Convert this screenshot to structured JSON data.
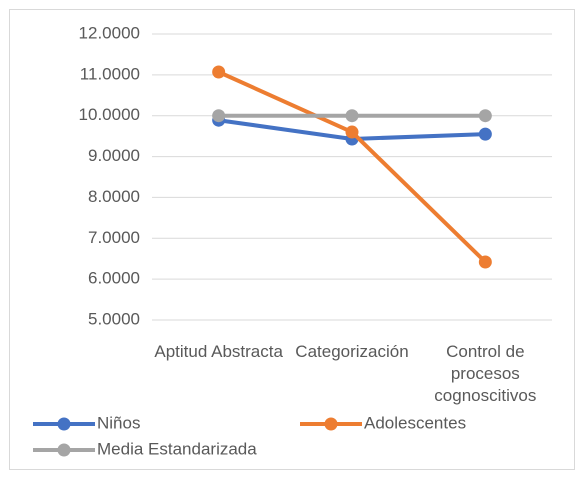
{
  "chart_data": {
    "type": "line",
    "categories": [
      "Aptitud Abstracta",
      "Categorización",
      "Control de procesos cognoscitivos"
    ],
    "series": [
      {
        "name": "Niños",
        "color": "#4472c4",
        "values": [
          9.89,
          9.43,
          9.55
        ]
      },
      {
        "name": "Adolescentes",
        "color": "#ed7d31",
        "values": [
          11.07,
          9.6,
          6.42
        ]
      },
      {
        "name": "Media Estandarizada",
        "color": "#a5a5a5",
        "values": [
          10,
          10,
          10
        ]
      }
    ],
    "ylim": [
      5,
      12
    ],
    "yticks": [
      {
        "value": 5,
        "label": "5.0000"
      },
      {
        "value": 6,
        "label": "6.0000"
      },
      {
        "value": 7,
        "label": "7.0000"
      },
      {
        "value": 8,
        "label": "8.0000"
      },
      {
        "value": 9,
        "label": "9.0000"
      },
      {
        "value": 10,
        "label": "10.0000"
      },
      {
        "value": 11,
        "label": "11.0000"
      },
      {
        "value": 12,
        "label": "12.0000"
      }
    ],
    "grid": true,
    "legend": "bottom"
  }
}
